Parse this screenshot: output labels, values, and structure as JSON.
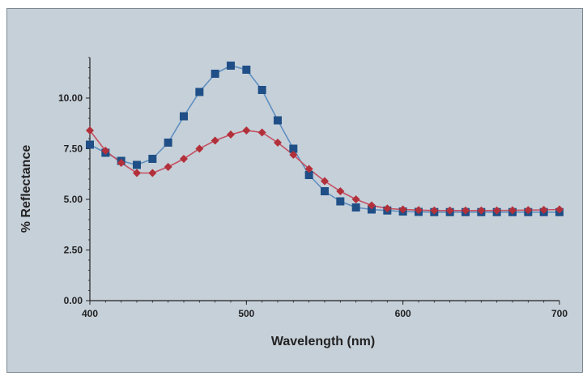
{
  "colors": {
    "background": "#c6d0d9",
    "series_blue_marker": "#1f4f86",
    "series_blue_line": "#5f8fc0",
    "series_red_marker": "#b2303a",
    "series_red_line": "#c45060",
    "axis": "#222222"
  },
  "chart_data": {
    "type": "line",
    "title": "",
    "xlabel": "Wavelength (nm)",
    "ylabel": "% Reflectance",
    "xlim": [
      400,
      700
    ],
    "ylim": [
      0,
      12
    ],
    "grid": false,
    "x_ticks": [
      400,
      500,
      600,
      700
    ],
    "x_tick_labels": [
      "400",
      "500",
      "600",
      "700"
    ],
    "y_ticks": [
      0,
      2.5,
      5,
      7.5,
      10
    ],
    "y_tick_labels": [
      "0.00",
      "2.50",
      "5.00",
      "7.50",
      "10.00"
    ],
    "x": [
      400,
      410,
      420,
      430,
      440,
      450,
      460,
      470,
      480,
      490,
      500,
      510,
      520,
      530,
      540,
      550,
      560,
      570,
      580,
      590,
      600,
      610,
      620,
      630,
      640,
      650,
      660,
      670,
      680,
      690,
      700
    ],
    "series": [
      {
        "marker": "square",
        "color": "#1f4f86",
        "values": [
          7.7,
          7.3,
          6.9,
          6.7,
          7.0,
          7.8,
          9.1,
          10.3,
          11.2,
          11.6,
          11.4,
          10.4,
          8.9,
          7.5,
          6.2,
          5.4,
          4.9,
          4.6,
          4.5,
          4.45,
          4.4,
          4.38,
          4.37,
          4.37,
          4.37,
          4.37,
          4.37,
          4.37,
          4.37,
          4.37,
          4.37
        ]
      },
      {
        "marker": "diamond",
        "color": "#b2303a",
        "values": [
          8.4,
          7.4,
          6.8,
          6.3,
          6.3,
          6.6,
          7.0,
          7.5,
          7.9,
          8.2,
          8.4,
          8.3,
          7.8,
          7.2,
          6.5,
          5.9,
          5.4,
          5.0,
          4.7,
          4.55,
          4.5,
          4.47,
          4.45,
          4.45,
          4.45,
          4.45,
          4.45,
          4.46,
          4.47,
          4.48,
          4.5
        ]
      }
    ]
  }
}
